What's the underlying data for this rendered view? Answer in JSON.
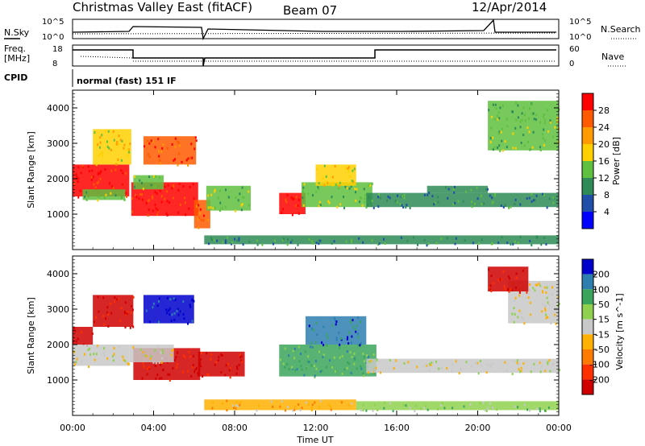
{
  "header": {
    "station": "Christmas Valley East (fitACF)",
    "beam": "Beam 07",
    "date": "12/Apr/2014"
  },
  "status_panel": {
    "n_sky_label": "N.Sky",
    "n_search_label": "N.Search",
    "counts_ticks": [
      "10^5",
      "10^0"
    ],
    "freq_label_line1": "Freq.",
    "freq_label_line2": "[MHz]",
    "freq_ticks": [
      "18",
      "8"
    ],
    "nave_label": "Nave",
    "nave_ticks": [
      "60",
      "0"
    ],
    "cpid_label": "CPID",
    "cpid_value": "normal (fast) 151 IF"
  },
  "colors": {
    "power_scale": [
      "#0000ff",
      "#1f4fa8",
      "#2e8b57",
      "#5fbf3f",
      "#ffd000",
      "#ff9a00",
      "#ff5a00",
      "#ff0000"
    ],
    "velocity_scale": [
      "#0000cc",
      "#2d7fb0",
      "#3aa55a",
      "#8fd14f",
      "#c8c8c8",
      "#ffb000",
      "#ff7a00",
      "#ff3000",
      "#d00000"
    ]
  },
  "chart_data": [
    {
      "type": "heatmap",
      "panel": "power",
      "xlabel": "",
      "ylabel": "Slant Range [km]",
      "y_ticks": [
        1000,
        2000,
        3000,
        4000
      ],
      "ylim": [
        0,
        4500
      ],
      "xlim_hours": [
        0,
        24
      ],
      "colorbar": {
        "label": "Power [dB]",
        "ticks": [
          "28",
          "24",
          "20",
          "16",
          "12",
          "8",
          "4"
        ]
      },
      "regions": [
        {
          "t0": 0.0,
          "t1": 2.8,
          "r0": 1500,
          "r1": 2400,
          "level": 7
        },
        {
          "t0": 0.5,
          "t1": 2.6,
          "r0": 1400,
          "r1": 1700,
          "level": 3
        },
        {
          "t0": 1.0,
          "t1": 2.9,
          "r0": 2400,
          "r1": 3400,
          "level": 4
        },
        {
          "t0": 2.9,
          "t1": 6.2,
          "r0": 950,
          "r1": 1900,
          "level": 7
        },
        {
          "t0": 3.0,
          "t1": 4.5,
          "r0": 1700,
          "r1": 2100,
          "level": 3
        },
        {
          "t0": 3.5,
          "t1": 6.1,
          "r0": 2400,
          "r1": 3200,
          "level": 6
        },
        {
          "t0": 6.0,
          "t1": 6.8,
          "r0": 600,
          "r1": 1400,
          "level": 6
        },
        {
          "t0": 6.6,
          "t1": 8.8,
          "r0": 1100,
          "r1": 1800,
          "level": 3
        },
        {
          "t0": 10.2,
          "t1": 11.5,
          "r0": 1000,
          "r1": 1600,
          "level": 7
        },
        {
          "t0": 11.3,
          "t1": 14.8,
          "r0": 1200,
          "r1": 1900,
          "level": 3
        },
        {
          "t0": 12.0,
          "t1": 14.0,
          "r0": 1800,
          "r1": 2400,
          "level": 4
        },
        {
          "t0": 14.5,
          "t1": 24.0,
          "r0": 1200,
          "r1": 1600,
          "level": 2
        },
        {
          "t0": 17.5,
          "t1": 20.5,
          "r0": 1600,
          "r1": 1800,
          "level": 2
        },
        {
          "t0": 20.5,
          "t1": 24.0,
          "r0": 2800,
          "r1": 4200,
          "level": 3
        },
        {
          "t0": 6.5,
          "t1": 24.0,
          "r0": 150,
          "r1": 400,
          "level": 2
        }
      ]
    },
    {
      "type": "heatmap",
      "panel": "velocity",
      "xlabel": "Time UT",
      "ylabel": "Slant Range [km]",
      "y_ticks": [
        1000,
        2000,
        3000,
        4000
      ],
      "ylim": [
        0,
        4500
      ],
      "xlim_hours": [
        0,
        24
      ],
      "x_ticks": [
        "00:00",
        "04:00",
        "08:00",
        "12:00",
        "16:00",
        "20:00",
        "00:00"
      ],
      "colorbar": {
        "label": "Velocity [m s^-1]",
        "ticks": [
          "200",
          "100",
          "50",
          "15",
          "-15",
          "-50",
          "-100",
          "-200"
        ]
      },
      "regions": [
        {
          "t0": 0.0,
          "t1": 1.0,
          "r0": 2000,
          "r1": 2500,
          "level": 0
        },
        {
          "t0": 0.0,
          "t1": 2.8,
          "r0": 1400,
          "r1": 2000,
          "level": 4
        },
        {
          "t0": 1.0,
          "t1": 3.0,
          "r0": 2500,
          "r1": 3400,
          "level": 0
        },
        {
          "t0": 3.0,
          "t1": 6.3,
          "r0": 1000,
          "r1": 1900,
          "level": 0
        },
        {
          "t0": 2.8,
          "t1": 5.0,
          "r0": 1500,
          "r1": 2000,
          "level": 4
        },
        {
          "t0": 3.5,
          "t1": 6.0,
          "r0": 2600,
          "r1": 3400,
          "level": 8
        },
        {
          "t0": 6.2,
          "t1": 8.5,
          "r0": 1100,
          "r1": 1800,
          "level": 0
        },
        {
          "t0": 10.2,
          "t1": 15.0,
          "r0": 1100,
          "r1": 2000,
          "level": 6
        },
        {
          "t0": 11.5,
          "t1": 14.5,
          "r0": 2000,
          "r1": 2800,
          "level": 7
        },
        {
          "t0": 14.5,
          "t1": 24.0,
          "r0": 1200,
          "r1": 1600,
          "level": 4
        },
        {
          "t0": 21.5,
          "t1": 24.0,
          "r0": 2600,
          "r1": 3800,
          "level": 4
        },
        {
          "t0": 20.5,
          "t1": 22.5,
          "r0": 3500,
          "r1": 4200,
          "level": 0
        },
        {
          "t0": 6.5,
          "t1": 14.0,
          "r0": 150,
          "r1": 450,
          "level": 3
        },
        {
          "t0": 14.0,
          "t1": 24.0,
          "r0": 150,
          "r1": 400,
          "level": 5
        }
      ]
    }
  ]
}
